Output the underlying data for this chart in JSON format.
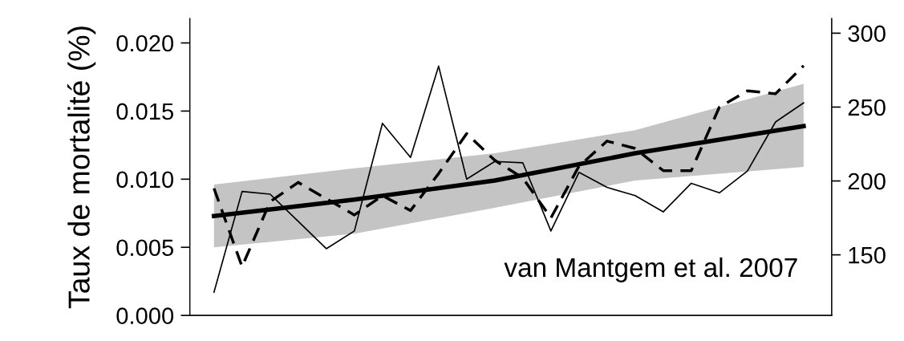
{
  "chart_data": {
    "type": "line",
    "ylabel": "Taux de mortalité (%)",
    "categories": [
      null,
      null,
      null,
      null,
      null,
      null,
      null,
      null,
      null,
      null,
      null,
      null,
      null,
      null,
      null,
      null,
      null,
      null,
      null,
      null,
      null,
      null
    ],
    "series": [
      {
        "color": "#000000",
        "line_style": "solid",
        "values": [
          0.0017,
          0.0091,
          0.0089,
          0.0069,
          0.0049,
          0.0062,
          0.0141,
          0.0116,
          0.0183,
          0.01,
          0.0113,
          0.0112,
          0.0062,
          0.0105,
          0.0094,
          0.0088,
          0.0076,
          0.0097,
          0.009,
          0.0106,
          0.0142,
          0.0156
        ]
      },
      {
        "color": "#000000",
        "line_style": "dashed",
        "axis": "y2",
        "values": [
          195,
          142,
          186,
          199,
          188,
          177,
          190,
          180,
          205,
          232,
          214,
          202,
          175,
          210,
          227,
          222,
          207,
          207,
          250,
          261,
          259,
          278
        ]
      },
      {
        "color": "#000000",
        "line_style": "solid",
        "values": [
          0.0073,
          null,
          null,
          null,
          null,
          0.0085,
          null,
          null,
          null,
          null,
          0.0099,
          null,
          null,
          null,
          null,
          0.0119,
          null,
          null,
          null,
          null,
          null,
          0.0139
        ],
        "lower": [
          0.005,
          null,
          null,
          null,
          null,
          0.006,
          null,
          null,
          null,
          null,
          0.0079,
          null,
          null,
          null,
          null,
          0.0099,
          null,
          null,
          null,
          null,
          null,
          0.0109
        ],
        "upper": [
          0.0096,
          null,
          null,
          null,
          null,
          0.0108,
          null,
          null,
          null,
          null,
          0.0119,
          null,
          null,
          null,
          null,
          0.0136,
          null,
          null,
          null,
          null,
          null,
          0.017
        ]
      }
    ],
    "ylim": [
      0,
      0.0218
    ],
    "yticks": [
      {
        "value": 0,
        "label": "0.000"
      },
      {
        "value": 0.005,
        "label": "0.005"
      },
      {
        "value": 0.01,
        "label": "0.010"
      },
      {
        "value": 0.015,
        "label": "0.015"
      },
      {
        "value": 0.02,
        "label": "0.020"
      }
    ],
    "y2lim": [
      109,
      310
    ],
    "y2ticks": [
      150,
      200,
      250,
      300
    ],
    "tick_labels": "y",
    "grid": false,
    "legend": false,
    "marker": "none",
    "annotations": [
      "van Mantgem et al. 2007"
    ]
  }
}
